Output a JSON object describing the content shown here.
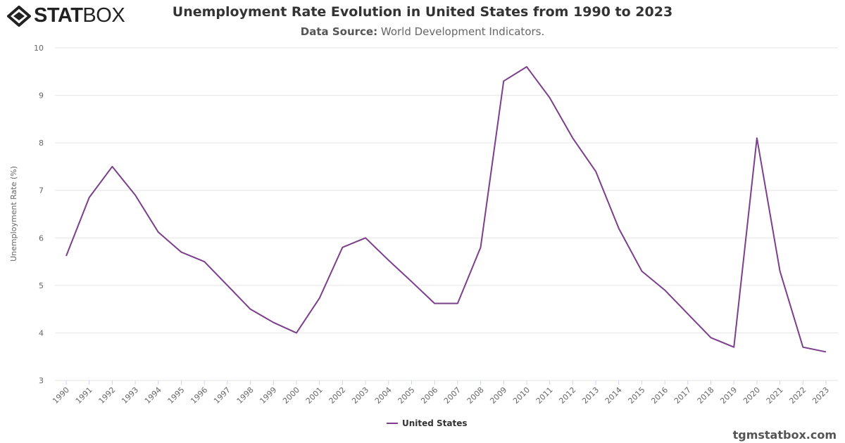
{
  "logo": {
    "text_bold": "STAT",
    "text_light": "BOX"
  },
  "footer": "tgmstatbox.com",
  "colors": {
    "series": "#7b3f8c",
    "grid": "#e6e6e6"
  },
  "chart_data": {
    "type": "line",
    "title": "Unemployment Rate Evolution in United States from 1990 to 2023",
    "subtitle_label": "Data Source:",
    "subtitle_value": "World Development Indicators.",
    "xlabel": "",
    "ylabel": "Unemployment Rate (%)",
    "ylim": [
      3,
      10
    ],
    "yticks": [
      3,
      4,
      5,
      6,
      7,
      8,
      9,
      10
    ],
    "grid": true,
    "legend": "bottom-center",
    "x": [
      "1990",
      "1991",
      "1992",
      "1993",
      "1994",
      "1995",
      "1996",
      "1997",
      "1998",
      "1999",
      "2000",
      "2001",
      "2002",
      "2003",
      "2004",
      "2005",
      "2006",
      "2007",
      "2008",
      "2009",
      "2010",
      "2011",
      "2012",
      "2013",
      "2014",
      "2015",
      "2016",
      "2017",
      "2018",
      "2019",
      "2020",
      "2021",
      "2022",
      "2023"
    ],
    "series": [
      {
        "name": "United States",
        "values": [
          5.62,
          6.85,
          7.5,
          6.9,
          6.12,
          5.7,
          5.5,
          5.0,
          4.5,
          4.22,
          4.0,
          4.73,
          5.8,
          6.0,
          5.53,
          5.08,
          4.62,
          4.62,
          5.8,
          9.3,
          9.6,
          8.95,
          8.1,
          7.4,
          6.2,
          5.3,
          4.9,
          4.4,
          3.9,
          3.7,
          8.1,
          5.3,
          3.7,
          3.6
        ]
      }
    ]
  }
}
